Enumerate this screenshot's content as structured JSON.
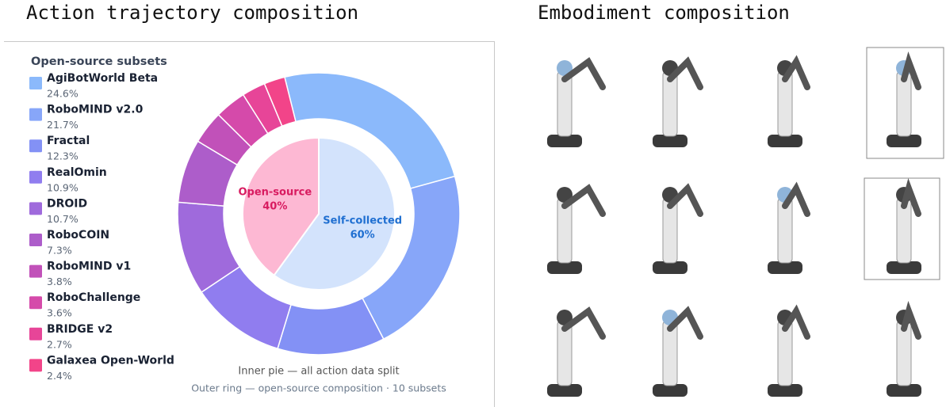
{
  "left_title": "Action trajectory composition",
  "right_title": "Embodiment composition",
  "chart_data": [
    {
      "type": "pie",
      "categories": [
        "Self-collected",
        "Open-source"
      ],
      "values": [
        60,
        40
      ],
      "value_labels": [
        "60%",
        "40%"
      ],
      "colors": [
        "#d3e3fc",
        "#fdb8d3"
      ],
      "label_colors": [
        "#1f6fd1",
        "#d81b60"
      ]
    },
    {
      "type": "donut",
      "legend_title": "Open-source subsets",
      "categories": [
        "AgiBotWorld Beta",
        "RoboMIND v2.0",
        "Fractal",
        "RealOmin",
        "DROID",
        "RoboCOIN",
        "RoboMIND v1",
        "RoboChallenge",
        "BRIDGE v2",
        "Galaxea Open-World"
      ],
      "values": [
        24.6,
        21.7,
        12.3,
        10.9,
        10.7,
        7.3,
        3.8,
        3.6,
        2.7,
        2.4
      ],
      "value_labels": [
        "24.6%",
        "21.7%",
        "12.3%",
        "10.9%",
        "10.7%",
        "7.3%",
        "3.8%",
        "3.6%",
        "2.7%",
        "2.4%"
      ],
      "colors": [
        "#8bb9fb",
        "#87a6f9",
        "#8391f5",
        "#907def",
        "#9f6adc",
        "#ad5dca",
        "#c151b9",
        "#d54aaa",
        "#e74598",
        "#f24489"
      ],
      "annotations": [
        "Inner pie — all action data split",
        "Outer ring — open-source composition · 10 subsets"
      ]
    }
  ]
}
